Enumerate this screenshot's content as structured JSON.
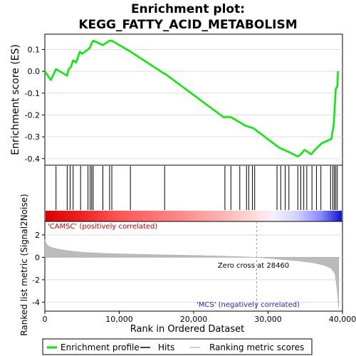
{
  "chart_data": {
    "type": "line",
    "title_line1": "Enrichment plot:",
    "title_line2": "KEGG_FATTY_ACID_METABOLISM",
    "top_panel": {
      "ylabel": "Enrichment score (ES)",
      "ylim": [
        -0.43,
        0.17
      ],
      "yticks": [
        0.1,
        0.0,
        -0.1,
        -0.2,
        -0.3,
        -0.4
      ],
      "ytick_labels": [
        "0.1",
        "0.0",
        "-0.1",
        "-0.2",
        "-0.3",
        "-0.4"
      ],
      "series_color": "#00ee00",
      "es_curve": {
        "x": [
          0,
          800,
          1500,
          3000,
          3200,
          3500,
          3800,
          4200,
          4700,
          5000,
          5800,
          6100,
          6300,
          6500,
          7800,
          8700,
          9000,
          11500,
          16000,
          16100,
          24000,
          25000,
          27000,
          28000,
          31500,
          32800,
          34000,
          34400,
          34900,
          35800,
          36300,
          37200,
          38500,
          38800,
          38900,
          39100,
          39300,
          39400
        ],
        "y": [
          0.0,
          -0.04,
          0.01,
          -0.02,
          0.01,
          0.02,
          0.05,
          0.04,
          0.09,
          0.08,
          0.1,
          0.11,
          0.13,
          0.14,
          0.12,
          0.14,
          0.14,
          0.09,
          -0.01,
          -0.01,
          -0.21,
          -0.21,
          -0.25,
          -0.26,
          -0.35,
          -0.37,
          -0.39,
          -0.38,
          -0.36,
          -0.38,
          -0.36,
          -0.33,
          -0.31,
          -0.25,
          -0.2,
          -0.08,
          -0.07,
          0.0
        ]
      }
    },
    "hits_panel": {
      "hit_positions": [
        1500,
        3000,
        3400,
        3800,
        4800,
        5800,
        6100,
        6300,
        6500,
        7800,
        8700,
        9000,
        11500,
        16100,
        24200,
        25000,
        26200,
        27100,
        27400,
        27900,
        28200,
        31200,
        31700,
        32300,
        32800,
        34000,
        34400,
        34800,
        35200,
        35900,
        36500,
        37100,
        38400,
        38700,
        38900,
        39100,
        39300
      ]
    },
    "bottom_panel": {
      "ylabel": "Ranked list metric (Signal2Noise)",
      "xlabel": "Rank in Ordered Dataset",
      "xlim": [
        0,
        40000
      ],
      "ylim": [
        -4.8,
        3.2
      ],
      "xticks": [
        0,
        10000,
        20000,
        30000,
        40000
      ],
      "xtick_labels": [
        "0",
        "10,000",
        "20,000",
        "30,000",
        "40,000"
      ],
      "yticks": [
        2,
        0,
        -2,
        -4
      ],
      "ytick_labels": [
        "2",
        "0",
        "-2",
        "-4"
      ],
      "zero_cross": 28460,
      "zero_cross_label": "Zero cross at 28460",
      "pos_label": "'CAMSC' (positively correlated)",
      "neg_label": "'MCS' (negatively correlated)",
      "metric_curve": {
        "x": [
          0,
          200,
          500,
          1000,
          2000,
          3000,
          5000,
          8000,
          12000,
          16000,
          20000,
          24000,
          27000,
          28460,
          30000,
          32000,
          34000,
          36000,
          37500,
          38500,
          39000,
          39300,
          39500
        ],
        "y": [
          1.6,
          1.2,
          1.0,
          0.85,
          0.7,
          0.6,
          0.45,
          0.35,
          0.28,
          0.22,
          0.17,
          0.1,
          0.04,
          0.0,
          -0.08,
          -0.2,
          -0.32,
          -0.48,
          -0.7,
          -1.0,
          -1.5,
          -3.0,
          -4.6
        ]
      }
    },
    "legend": {
      "items": [
        {
          "label": "Enrichment profile",
          "color": "#00ee00"
        },
        {
          "label": "Hits",
          "color": "#000000"
        },
        {
          "label": "Ranking metric scores",
          "color": "#bbbbbb"
        }
      ]
    }
  }
}
